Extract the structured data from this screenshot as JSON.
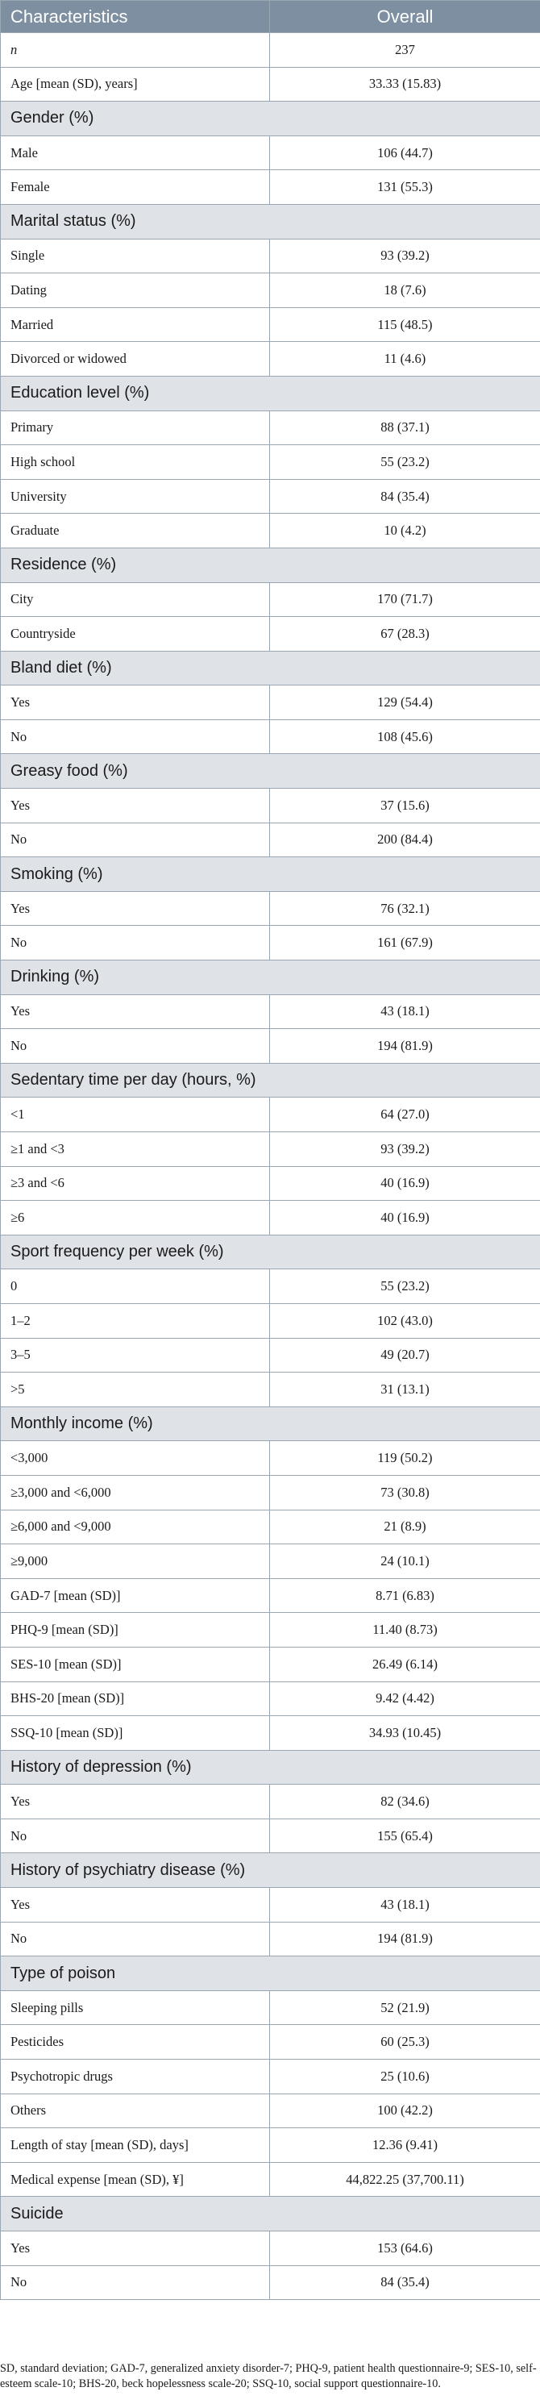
{
  "table": {
    "header": {
      "col1": "Characteristics",
      "col2": "Overall"
    },
    "rows": [
      {
        "type": "row",
        "label": "n",
        "value": "237",
        "italic": true
      },
      {
        "type": "row",
        "label": "Age [mean (SD), years]",
        "value": "33.33 (15.83)"
      },
      {
        "type": "section",
        "label": "Gender (%)"
      },
      {
        "type": "row",
        "label": "Male",
        "value": "106 (44.7)"
      },
      {
        "type": "row",
        "label": "Female",
        "value": "131 (55.3)"
      },
      {
        "type": "section",
        "label": "Marital status (%)"
      },
      {
        "type": "row",
        "label": "Single",
        "value": "93 (39.2)"
      },
      {
        "type": "row",
        "label": "Dating",
        "value": "18 (7.6)"
      },
      {
        "type": "row",
        "label": "Married",
        "value": "115 (48.5)"
      },
      {
        "type": "row",
        "label": "Divorced or widowed",
        "value": "11 (4.6)"
      },
      {
        "type": "section",
        "label": "Education level (%)"
      },
      {
        "type": "row",
        "label": "Primary",
        "value": "88 (37.1)"
      },
      {
        "type": "row",
        "label": "High school",
        "value": "55 (23.2)"
      },
      {
        "type": "row",
        "label": "University",
        "value": "84 (35.4)"
      },
      {
        "type": "row",
        "label": "Graduate",
        "value": "10 (4.2)"
      },
      {
        "type": "section",
        "label": "Residence (%)"
      },
      {
        "type": "row",
        "label": "City",
        "value": "170 (71.7)"
      },
      {
        "type": "row",
        "label": "Countryside",
        "value": "67 (28.3)"
      },
      {
        "type": "section",
        "label": "Bland diet (%)"
      },
      {
        "type": "row",
        "label": "Yes",
        "value": "129 (54.4)"
      },
      {
        "type": "row",
        "label": "No",
        "value": "108 (45.6)"
      },
      {
        "type": "section",
        "label": "Greasy food (%)"
      },
      {
        "type": "row",
        "label": "Yes",
        "value": "37 (15.6)"
      },
      {
        "type": "row",
        "label": "No",
        "value": "200 (84.4)"
      },
      {
        "type": "section",
        "label": "Smoking (%)"
      },
      {
        "type": "row",
        "label": "Yes",
        "value": "76 (32.1)"
      },
      {
        "type": "row",
        "label": "No",
        "value": "161 (67.9)"
      },
      {
        "type": "section",
        "label": "Drinking (%)"
      },
      {
        "type": "row",
        "label": "Yes",
        "value": "43 (18.1)"
      },
      {
        "type": "row",
        "label": "No",
        "value": "194 (81.9)"
      },
      {
        "type": "section",
        "label": "Sedentary time per day (hours, %)"
      },
      {
        "type": "row",
        "label": "<1",
        "value": "64 (27.0)"
      },
      {
        "type": "row",
        "label": "≥1 and <3",
        "value": "93 (39.2)"
      },
      {
        "type": "row",
        "label": "≥3 and <6",
        "value": "40 (16.9)"
      },
      {
        "type": "row",
        "label": "≥6",
        "value": "40 (16.9)"
      },
      {
        "type": "section",
        "label": "Sport frequency per week (%)"
      },
      {
        "type": "row",
        "label": "0",
        "value": "55 (23.2)"
      },
      {
        "type": "row",
        "label": "1–2",
        "value": "102 (43.0)"
      },
      {
        "type": "row",
        "label": "3–5",
        "value": "49 (20.7)"
      },
      {
        "type": "row",
        "label": ">5",
        "value": "31 (13.1)"
      },
      {
        "type": "section",
        "label": "Monthly income (%)"
      },
      {
        "type": "row",
        "label": "<3,000",
        "value": "119 (50.2)"
      },
      {
        "type": "row",
        "label": "≥3,000 and <6,000",
        "value": "73 (30.8)"
      },
      {
        "type": "row",
        "label": "≥6,000 and <9,000",
        "value": "21 (8.9)"
      },
      {
        "type": "row",
        "label": "≥9,000",
        "value": "24 (10.1)"
      },
      {
        "type": "row",
        "label": "GAD-7 [mean (SD)]",
        "value": "8.71 (6.83)"
      },
      {
        "type": "row",
        "label": "PHQ-9 [mean (SD)]",
        "value": "11.40 (8.73)"
      },
      {
        "type": "row",
        "label": "SES-10 [mean (SD)]",
        "value": "26.49 (6.14)"
      },
      {
        "type": "row",
        "label": "BHS-20 [mean (SD)]",
        "value": "9.42 (4.42)"
      },
      {
        "type": "row",
        "label": "SSQ-10 [mean (SD)]",
        "value": "34.93 (10.45)"
      },
      {
        "type": "section",
        "label": "History of depression (%)"
      },
      {
        "type": "row",
        "label": "Yes",
        "value": "82 (34.6)"
      },
      {
        "type": "row",
        "label": "No",
        "value": "155 (65.4)"
      },
      {
        "type": "section",
        "label": "History of psychiatry disease (%)"
      },
      {
        "type": "row",
        "label": "Yes",
        "value": "43 (18.1)"
      },
      {
        "type": "row",
        "label": "No",
        "value": "194 (81.9)"
      },
      {
        "type": "section",
        "label": "Type of poison"
      },
      {
        "type": "row",
        "label": "Sleeping pills",
        "value": "52 (21.9)"
      },
      {
        "type": "row",
        "label": "Pesticides",
        "value": "60 (25.3)"
      },
      {
        "type": "row",
        "label": "Psychotropic drugs",
        "value": "25 (10.6)"
      },
      {
        "type": "row",
        "label": "Others",
        "value": "100 (42.2)"
      },
      {
        "type": "row",
        "label": "Length of stay [mean (SD), days]",
        "value": "12.36 (9.41)"
      },
      {
        "type": "row",
        "label": "Medical expense [mean (SD), ¥]",
        "value": "44,822.25 (37,700.11)"
      },
      {
        "type": "section",
        "label": "Suicide"
      },
      {
        "type": "row",
        "label": "Yes",
        "value": "153 (64.6)"
      },
      {
        "type": "row",
        "label": "No",
        "value": "84 (35.4)"
      }
    ]
  },
  "footnote": "SD, standard deviation; GAD-7, generalized anxiety disorder-7; PHQ-9, patient health questionnaire-9; SES-10, self-esteem scale-10; BHS-20, beck hopelessness scale-20; SSQ-10, social support questionnaire-10."
}
